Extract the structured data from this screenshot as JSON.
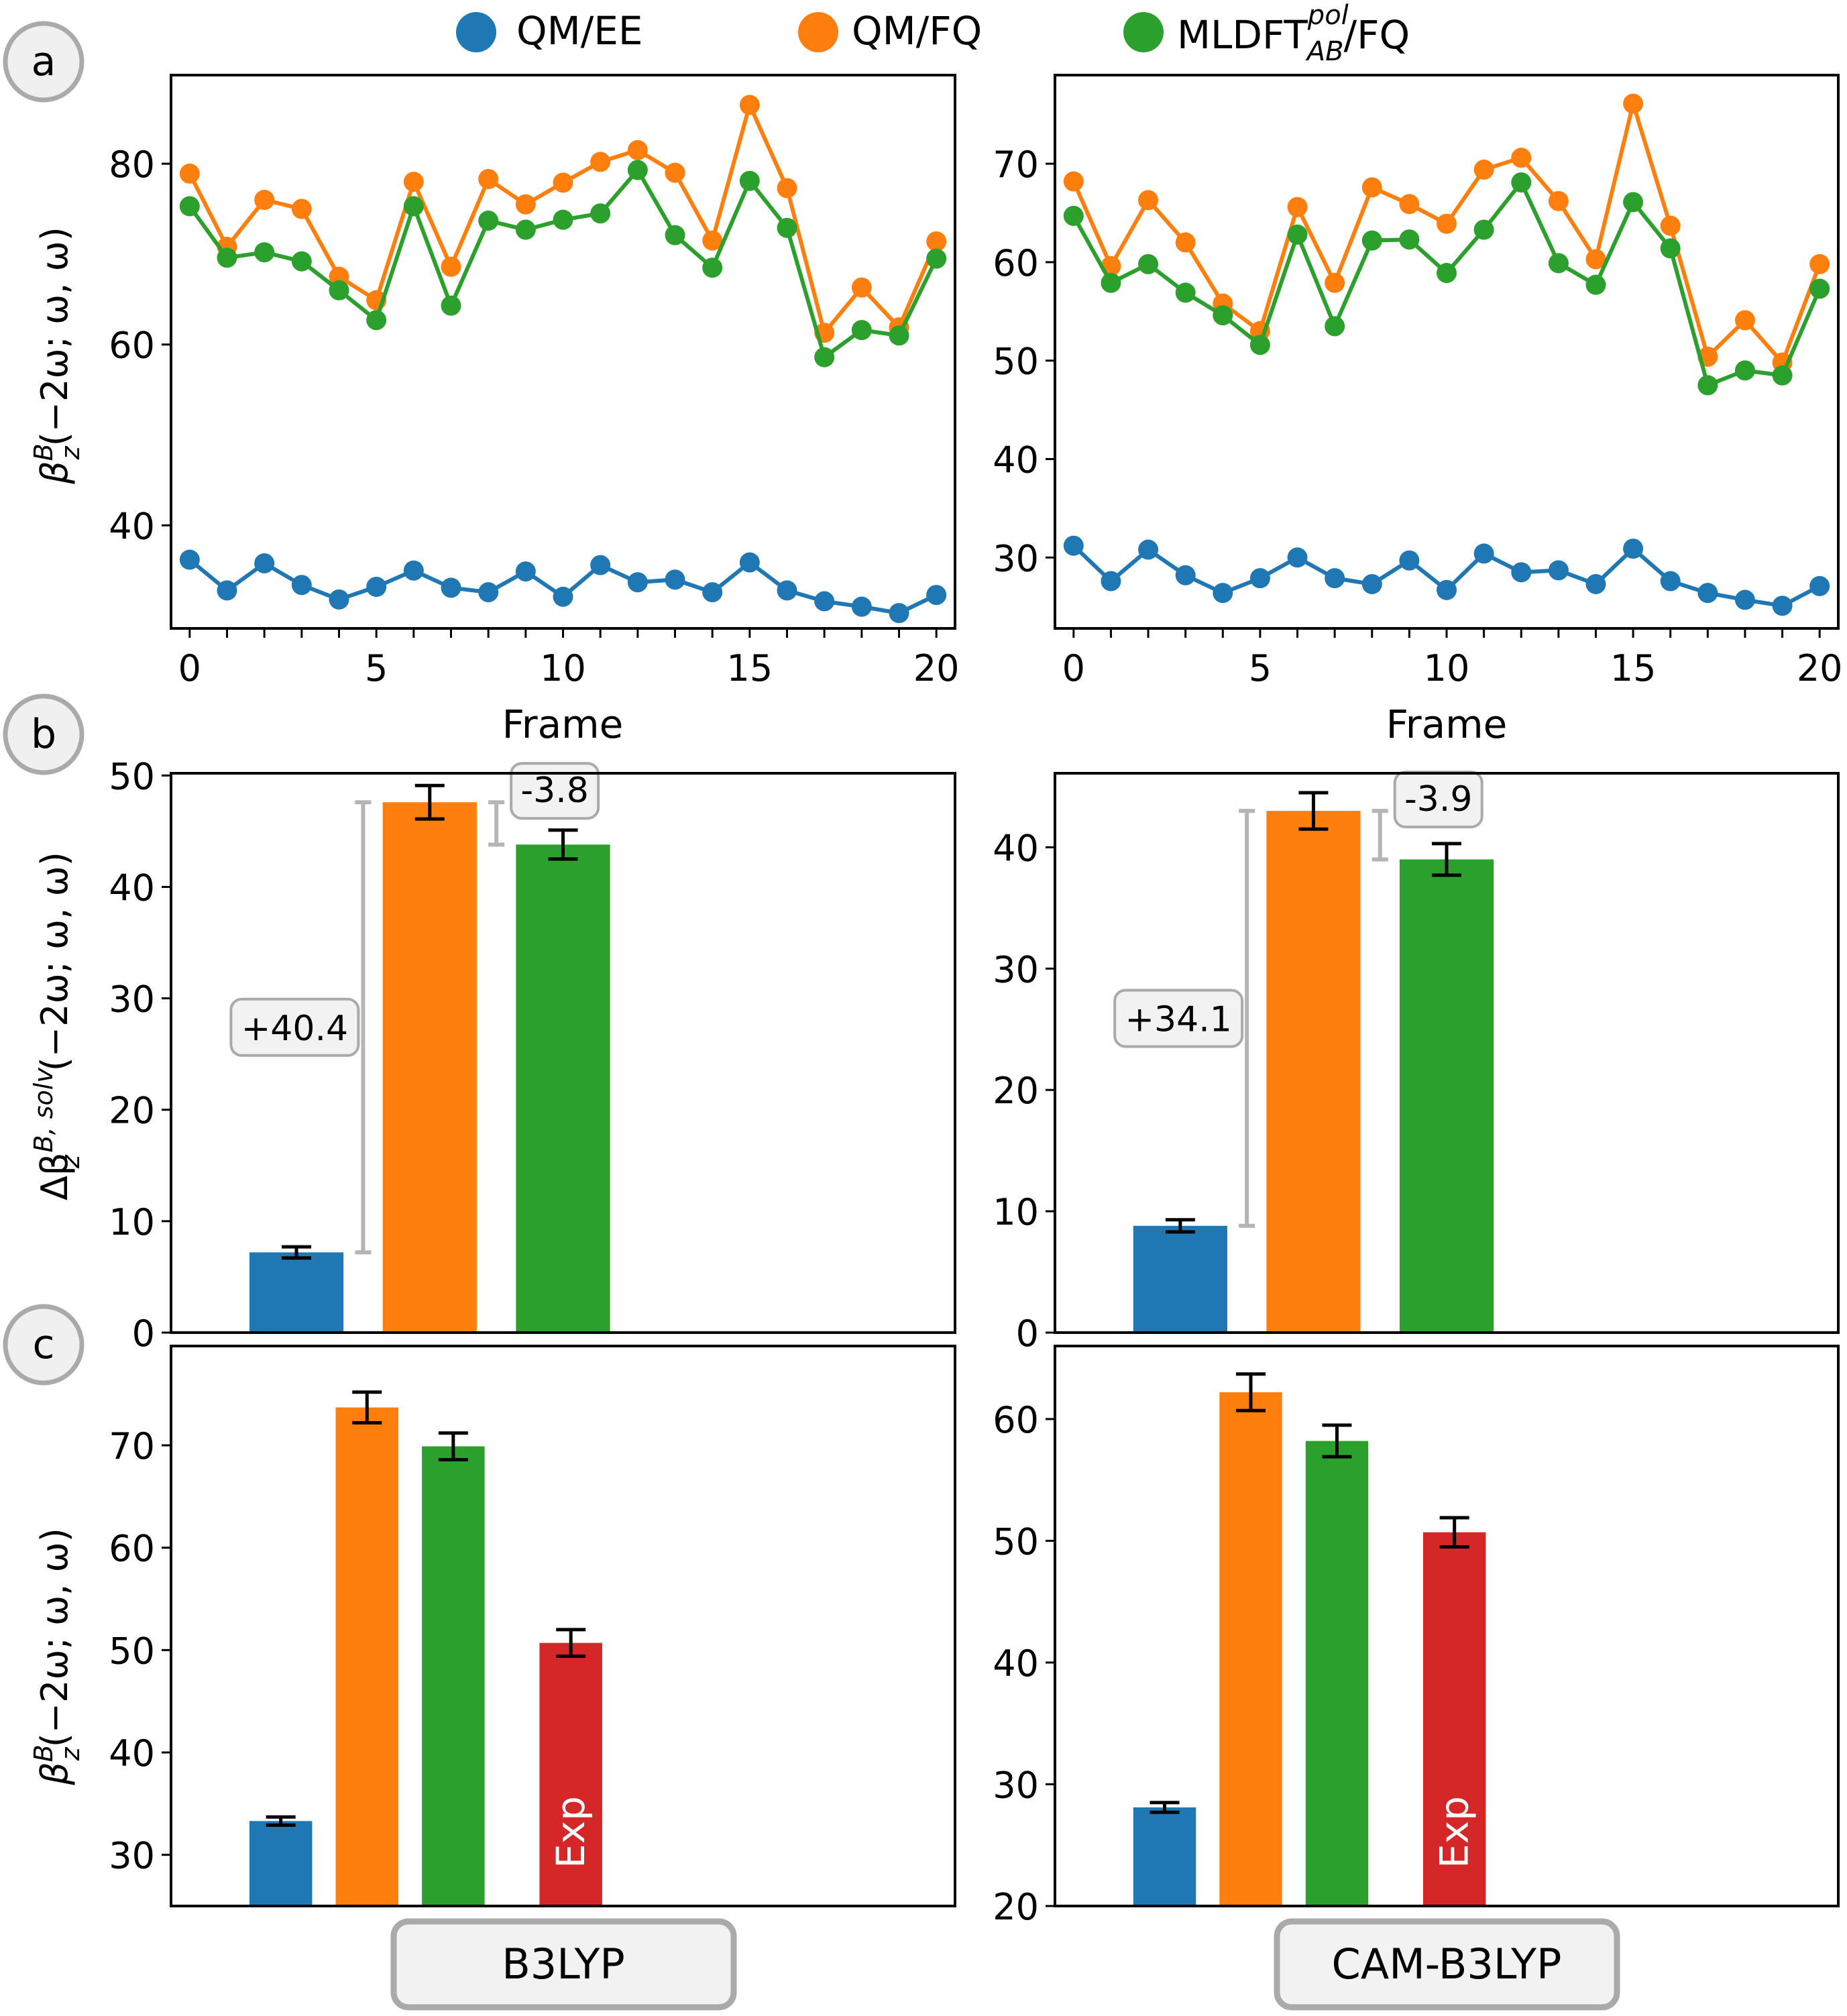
{
  "legend": [
    {
      "label": "QM/EE",
      "color": "#1f77b4"
    },
    {
      "label": "QM/FQ",
      "color": "#ff7f0e"
    },
    {
      "label_main": "MLDFT",
      "label_sup": "pol",
      "label_sub": "AB",
      "label_tail": "/FQ",
      "color": "#2ca02c"
    }
  ],
  "panel_labels": {
    "a": "a",
    "b": "b",
    "c": "c"
  },
  "axis_labels": {
    "frame": "Frame",
    "beta_a": "β",
    "beta_a_sup": "B",
    "beta_a_sub": "z",
    "beta_a_tail": "(−2ω; ω, ω)",
    "delta_main": "Δβ",
    "delta_sup": "B, solv",
    "delta_sub": "z",
    "delta_tail": "(−2ω; ω, ω)"
  },
  "functionals": [
    "B3LYP",
    "CAM-B3LYP"
  ],
  "exp_label": "Exp",
  "chart_data": [
    {
      "type": "line",
      "panel": "a",
      "functional": "B3LYP",
      "x": [
        0,
        1,
        2,
        3,
        4,
        5,
        6,
        7,
        8,
        9,
        10,
        11,
        12,
        13,
        14,
        15,
        16,
        17,
        18,
        19,
        20
      ],
      "xlabel": "Frame",
      "xticks": [
        0,
        5,
        10,
        15,
        20
      ],
      "xlim": [
        -0.5,
        20.5
      ],
      "ylabel": "βzB(−2ω; ω, ω)",
      "yticks": [
        40,
        60,
        80
      ],
      "ylim": [
        28.6,
        89.8
      ],
      "series": [
        {
          "name": "QM/EE",
          "color": "#1f77b4",
          "values": [
            36.2,
            32.8,
            35.8,
            33.4,
            31.8,
            33.2,
            35.0,
            33.1,
            32.6,
            34.9,
            32.1,
            35.6,
            33.7,
            34.0,
            32.6,
            35.9,
            32.8,
            31.6,
            31.0,
            30.3,
            32.3
          ]
        },
        {
          "name": "QM/FQ",
          "color": "#ff7f0e",
          "values": [
            78.9,
            70.8,
            76.0,
            75.0,
            67.5,
            64.9,
            78.0,
            68.6,
            78.3,
            75.5,
            77.9,
            80.2,
            81.5,
            79.0,
            71.5,
            86.5,
            77.3,
            61.3,
            66.3,
            61.9,
            71.4
          ]
        },
        {
          "name": "MLDFT_AB^pol/FQ",
          "color": "#2ca02c",
          "values": [
            75.3,
            69.6,
            70.2,
            69.2,
            66.0,
            62.7,
            75.3,
            64.3,
            73.7,
            72.7,
            73.8,
            74.5,
            79.3,
            72.1,
            68.5,
            78.1,
            72.9,
            58.6,
            61.6,
            61.0,
            69.5
          ]
        }
      ]
    },
    {
      "type": "line",
      "panel": "a",
      "functional": "CAM-B3LYP",
      "x": [
        0,
        1,
        2,
        3,
        4,
        5,
        6,
        7,
        8,
        9,
        10,
        11,
        12,
        13,
        14,
        15,
        16,
        17,
        18,
        19,
        20
      ],
      "xlabel": "Frame",
      "xticks": [
        0,
        5,
        10,
        15,
        20
      ],
      "xlim": [
        -0.5,
        20.5
      ],
      "yticks": [
        30,
        40,
        50,
        60,
        70
      ],
      "ylim": [
        22.8,
        79.0
      ],
      "series": [
        {
          "name": "QM/EE",
          "color": "#1f77b4",
          "values": [
            31.2,
            27.6,
            30.8,
            28.2,
            26.4,
            27.9,
            30.0,
            27.9,
            27.3,
            29.7,
            26.7,
            30.4,
            28.5,
            28.7,
            27.3,
            30.9,
            27.6,
            26.4,
            25.7,
            25.1,
            27.1
          ]
        },
        {
          "name": "QM/FQ",
          "color": "#ff7f0e",
          "values": [
            68.2,
            59.6,
            66.3,
            62.0,
            55.8,
            53.0,
            65.6,
            57.9,
            67.6,
            65.9,
            63.9,
            69.4,
            70.6,
            66.2,
            60.3,
            76.1,
            63.7,
            50.4,
            54.1,
            49.8,
            59.8
          ]
        },
        {
          "name": "MLDFT_AB^pol/FQ",
          "color": "#2ca02c",
          "values": [
            64.7,
            57.9,
            59.8,
            56.9,
            54.6,
            51.6,
            62.8,
            53.5,
            62.2,
            62.3,
            58.9,
            63.3,
            68.1,
            59.9,
            57.7,
            66.1,
            61.4,
            47.5,
            49.0,
            48.5,
            57.3
          ]
        }
      ]
    },
    {
      "type": "bar",
      "panel": "b",
      "functional": "B3LYP",
      "categories": [
        "QM/EE",
        "QM/FQ",
        "MLDFT_AB^pol/FQ"
      ],
      "colors": [
        "#1f77b4",
        "#ff7f0e",
        "#2ca02c"
      ],
      "values": [
        7.2,
        47.6,
        43.8
      ],
      "errors": [
        0.5,
        1.5,
        1.3
      ],
      "ylabel": "ΔβzB, solv(−2ω; ω, ω)",
      "yticks": [
        0,
        10,
        20,
        30,
        40,
        50
      ],
      "ylim": [
        0,
        50.2
      ],
      "annotations": [
        {
          "text": "+40.4",
          "from": 7.2,
          "to": 47.6
        },
        {
          "text": "-3.8",
          "from": 43.8,
          "to": 47.6
        }
      ]
    },
    {
      "type": "bar",
      "panel": "b",
      "functional": "CAM-B3LYP",
      "categories": [
        "QM/EE",
        "QM/FQ",
        "MLDFT_AB^pol/FQ"
      ],
      "colors": [
        "#1f77b4",
        "#ff7f0e",
        "#2ca02c"
      ],
      "values": [
        8.8,
        43.0,
        39.0
      ],
      "errors": [
        0.5,
        1.5,
        1.3
      ],
      "yticks": [
        0,
        10,
        20,
        30,
        40
      ],
      "ylim": [
        0,
        46.1
      ],
      "annotations": [
        {
          "text": "+34.1",
          "from": 8.8,
          "to": 43.0
        },
        {
          "text": "-3.9",
          "from": 39.0,
          "to": 43.0
        }
      ]
    },
    {
      "type": "bar",
      "panel": "c",
      "functional": "B3LYP",
      "categories": [
        "QM/EE",
        "QM/FQ",
        "MLDFT_AB^pol/FQ",
        "Exp"
      ],
      "colors": [
        "#1f77b4",
        "#ff7f0e",
        "#2ca02c",
        "#d62728"
      ],
      "values": [
        33.3,
        73.7,
        69.9,
        50.7
      ],
      "errors": [
        0.4,
        1.5,
        1.3,
        1.3
      ],
      "ylabel": "βzB(−2ω; ω, ω)",
      "yticks": [
        30,
        40,
        50,
        60,
        70
      ],
      "ylim": [
        25.0,
        79.7
      ]
    },
    {
      "type": "bar",
      "panel": "c",
      "functional": "CAM-B3LYP",
      "categories": [
        "QM/EE",
        "QM/FQ",
        "MLDFT_AB^pol/FQ",
        "Exp"
      ],
      "colors": [
        "#1f77b4",
        "#ff7f0e",
        "#2ca02c",
        "#d62728"
      ],
      "values": [
        28.1,
        62.2,
        58.2,
        50.7
      ],
      "errors": [
        0.4,
        1.5,
        1.3,
        1.2
      ],
      "yticks": [
        20,
        30,
        40,
        50,
        60
      ],
      "ylim": [
        20.0,
        66.0
      ]
    }
  ]
}
